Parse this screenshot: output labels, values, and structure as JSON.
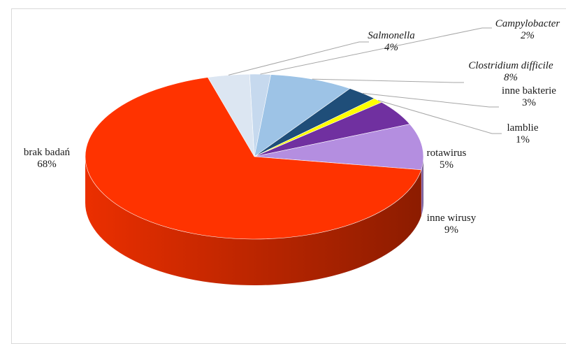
{
  "chart_data": {
    "type": "pie",
    "title": "",
    "legend": "none",
    "slices": [
      {
        "label": "Salmonella",
        "value_label": "4%",
        "value": 4,
        "italic": true,
        "color": "#dce6f2"
      },
      {
        "label": "Campylobacter",
        "value_label": "2%",
        "value": 2,
        "italic": true,
        "color": "#c6d9ee"
      },
      {
        "label": "Clostridium difficile",
        "value_label": "8%",
        "value": 8,
        "italic": true,
        "color": "#9dc3e6"
      },
      {
        "label": "inne bakterie",
        "value_label": "3%",
        "value": 3,
        "italic": false,
        "color": "#1f4e79"
      },
      {
        "label": "lamblie",
        "value_label": "1%",
        "value": 1,
        "italic": false,
        "color": "#ffff00"
      },
      {
        "label": "rotawirus",
        "value_label": "5%",
        "value": 5,
        "italic": false,
        "color": "#7030a0"
      },
      {
        "label": "inne wirusy",
        "value_label": "9%",
        "value": 9,
        "italic": false,
        "color": "#b48ee0"
      },
      {
        "label": "brak badań",
        "value_label": "68%",
        "value": 68,
        "italic": false,
        "color": "#ff3300"
      }
    ]
  }
}
